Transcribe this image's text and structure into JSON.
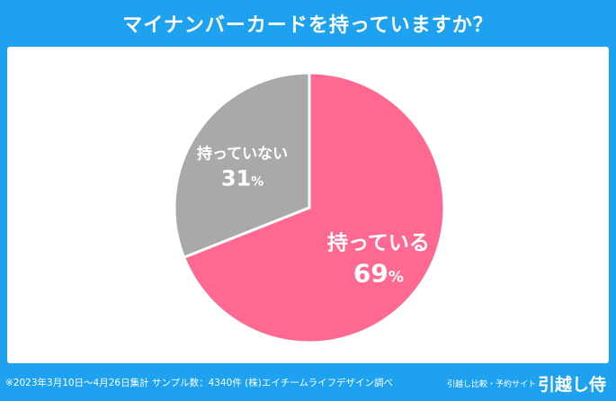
{
  "header": {
    "title": "マイナンバーカードを持っていますか？"
  },
  "chart_data": {
    "type": "pie",
    "title": "マイナンバーカードを持っていますか？",
    "slices": [
      {
        "label": "持っている",
        "value": 69,
        "display": "69",
        "color": "#ff6891"
      },
      {
        "label": "持っていない",
        "value": 31,
        "display": "31",
        "color": "#a9a9a9"
      }
    ],
    "unit": "%"
  },
  "footer": {
    "note": "※2023年3月10日〜4月26日集計 サンプル数：4340件 (株)エイチームライフデザイン調べ",
    "brand_caption": "引越し比較・予約サイト",
    "brand_logo": "引越し侍"
  }
}
